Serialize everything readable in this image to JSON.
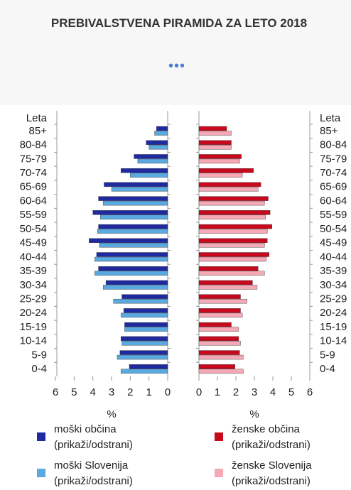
{
  "chart_data": {
    "type": "pyramid",
    "title": "PREBIVALSTVENA PIRAMIDA ZA LETO 2018",
    "category_header": "Leta",
    "categories": [
      "85+",
      "80-84",
      "75-79",
      "70-74",
      "65-69",
      "60-64",
      "55-59",
      "50-54",
      "45-49",
      "40-44",
      "35-39",
      "30-34",
      "25-29",
      "20-24",
      "15-19",
      "10-14",
      "5-9",
      "0-4"
    ],
    "series": [
      {
        "name": "moški občina",
        "color": "#1f2aa0",
        "side": "left",
        "values": [
          0.6,
          1.15,
          1.8,
          2.5,
          3.4,
          3.7,
          4.0,
          3.7,
          4.2,
          3.8,
          3.7,
          3.3,
          2.45,
          2.35,
          2.3,
          2.5,
          2.55,
          2.05
        ]
      },
      {
        "name": "moški Slovenija",
        "color": "#5aa9e0",
        "side": "left",
        "values": [
          0.7,
          1.0,
          1.6,
          2.0,
          3.0,
          3.45,
          3.6,
          3.75,
          3.65,
          3.9,
          3.9,
          3.45,
          2.9,
          2.5,
          2.3,
          2.45,
          2.7,
          2.5
        ]
      },
      {
        "name": "ženske občina",
        "color": "#c8081c",
        "side": "right",
        "values": [
          1.5,
          1.75,
          2.3,
          2.95,
          3.35,
          3.75,
          3.85,
          3.95,
          3.7,
          3.8,
          3.2,
          2.9,
          2.25,
          2.25,
          1.75,
          2.15,
          2.2,
          1.95
        ]
      },
      {
        "name": "ženske Slovenija",
        "color": "#f5a9b6",
        "side": "right",
        "values": [
          1.75,
          1.75,
          2.2,
          2.35,
          3.2,
          3.55,
          3.6,
          3.7,
          3.55,
          3.65,
          3.55,
          3.15,
          2.6,
          2.35,
          2.15,
          2.25,
          2.4,
          2.4
        ]
      }
    ],
    "xlim": [
      0,
      6
    ],
    "xticks": [
      0,
      1,
      2,
      3,
      4,
      5,
      6
    ],
    "xlabel": "%",
    "legend_toggle": "(prikaži/odstrani)"
  }
}
